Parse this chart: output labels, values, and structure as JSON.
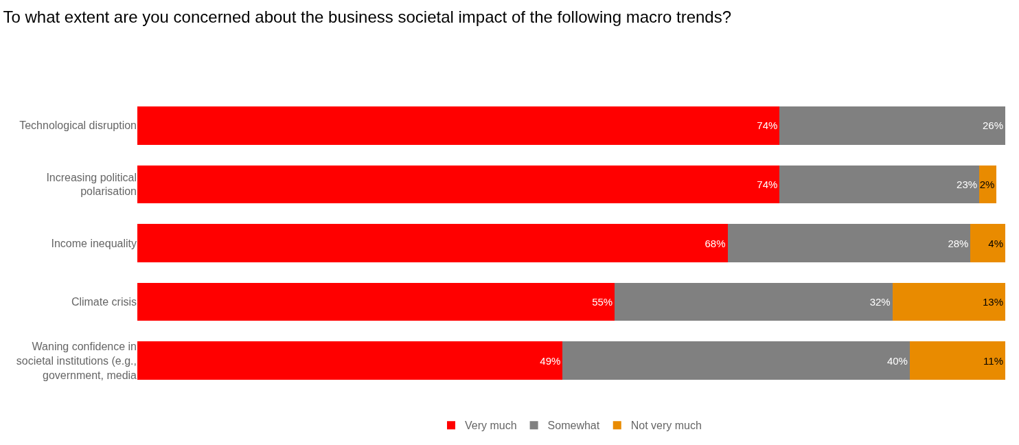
{
  "chart_data": {
    "type": "bar",
    "orientation": "horizontal",
    "stacked": true,
    "title": "To what extent are you concerned about the business societal impact of the following macro trends?",
    "categories": [
      "Technological disruption",
      "Increasing political polarisation",
      "Income inequality",
      "Climate crisis",
      "Waning confidence in societal institutions (e.g., government, media"
    ],
    "series": [
      {
        "name": "Very much",
        "color": "#ff0000",
        "values": [
          74,
          74,
          68,
          55,
          49
        ],
        "value_labels": [
          "74%",
          "74%",
          "68%",
          "55%",
          "49%"
        ]
      },
      {
        "name": "Somewhat",
        "color": "#808080",
        "values": [
          26,
          23,
          28,
          32,
          40
        ],
        "value_labels": [
          "26%",
          "23%",
          "28%",
          "32%",
          "40%"
        ]
      },
      {
        "name": "Not very much",
        "color": "#e98b00",
        "values": [
          null,
          2,
          4,
          13,
          11
        ],
        "value_labels": [
          null,
          "2%",
          "4%",
          "13%",
          "11%"
        ]
      }
    ],
    "xlim": [
      0,
      100
    ],
    "legend": "bottom",
    "tick_labels": "y"
  }
}
